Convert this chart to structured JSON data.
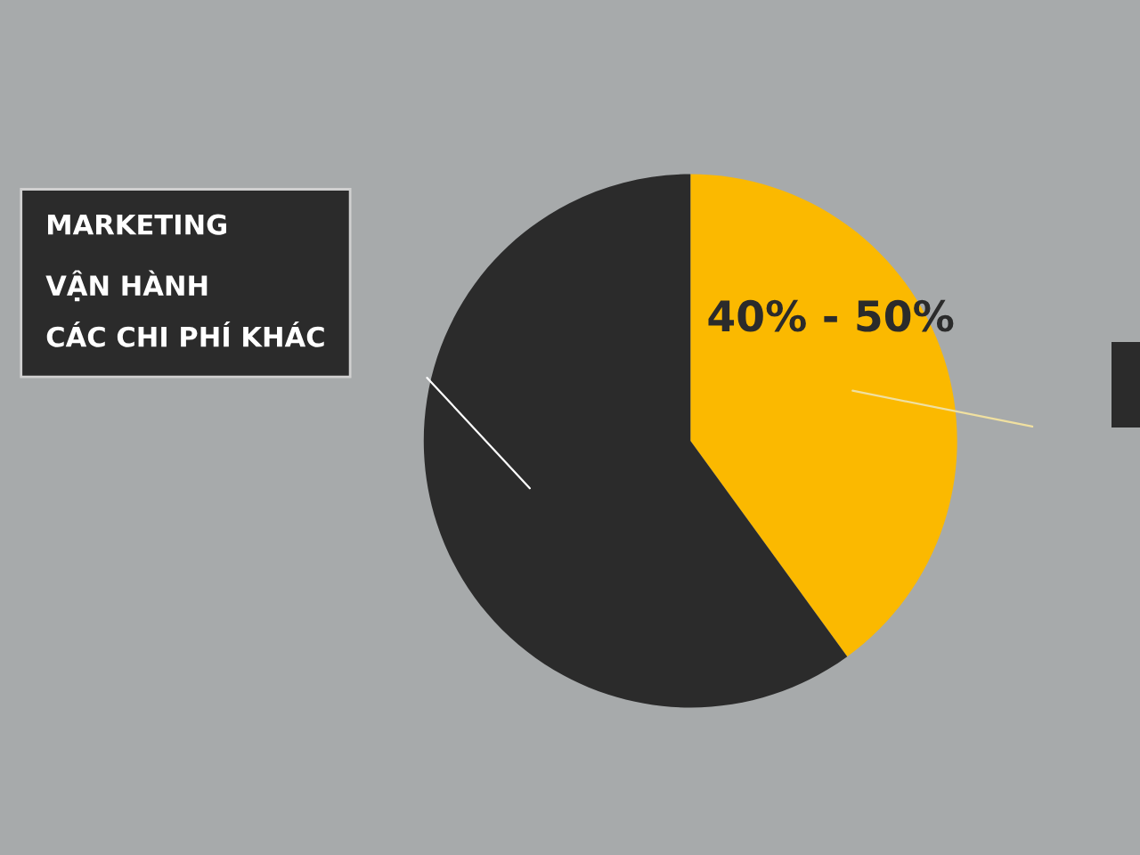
{
  "chart_data": {
    "type": "pie",
    "categories": [
      null,
      "MARKETING\nVẬN HÀNH\nCÁC CHI PHÍ KHÁC"
    ],
    "values": [
      40,
      60
    ],
    "colors": [
      "#fbb900",
      "#2b2b2b"
    ],
    "value_labels": [
      "40% - 50%",
      null
    ]
  }
}
